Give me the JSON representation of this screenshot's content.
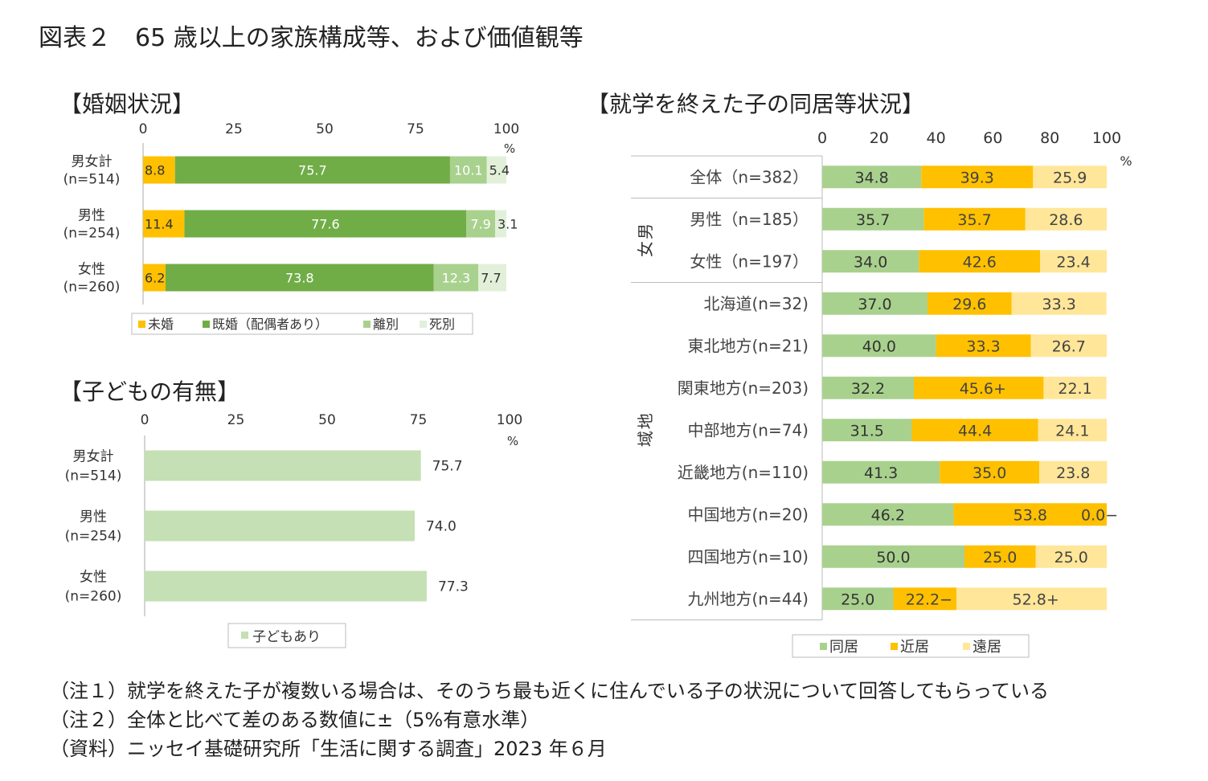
{
  "title": "図表２　65 歳以上の家族構成等、および価値観等",
  "colors": {
    "unmarried": "#ffc000",
    "married": "#70ad47",
    "divorced": "#a9d18e",
    "widowed": "#e2f0d9",
    "children": "#c5e0b4",
    "together": "#a9d18e",
    "near": "#ffc000",
    "far": "#ffe699"
  },
  "chart_data": [
    {
      "type": "bar",
      "title": "【婚姻状況】",
      "stacked": true,
      "orientation": "horizontal",
      "xlim": [
        0,
        100
      ],
      "xticks": [
        "0",
        "25",
        "50",
        "75",
        "100"
      ],
      "unit": "%",
      "categories": [
        [
          "男女計",
          "(n=514)"
        ],
        [
          "男性",
          "(n=254)"
        ],
        [
          "女性",
          "(n=260)"
        ]
      ],
      "series": [
        {
          "name": "未婚",
          "values": [
            8.8,
            11.4,
            6.2
          ],
          "labels": [
            "8.8",
            "11.4",
            "6.2"
          ]
        },
        {
          "name": "既婚（配偶者あり）",
          "values": [
            75.7,
            77.6,
            73.8
          ],
          "labels": [
            "75.7",
            "77.6",
            "73.8"
          ]
        },
        {
          "name": "離別",
          "values": [
            10.1,
            7.9,
            12.3
          ],
          "labels": [
            "10.1",
            "7.9",
            "12.3"
          ]
        },
        {
          "name": "死別",
          "values": [
            5.4,
            3.1,
            7.7
          ],
          "labels": [
            "5.4",
            "3.1",
            "7.7"
          ]
        }
      ],
      "legend": "bottom"
    },
    {
      "type": "bar",
      "title": "【子どもの有無】",
      "orientation": "horizontal",
      "xlim": [
        0,
        100
      ],
      "xticks": [
        "0",
        "25",
        "50",
        "75",
        "100"
      ],
      "unit": "%",
      "categories": [
        [
          "男女計",
          "(n=514)"
        ],
        [
          "男性",
          "(n=254)"
        ],
        [
          "女性",
          "(n=260)"
        ]
      ],
      "series": [
        {
          "name": "子どもあり",
          "values": [
            75.7,
            74.0,
            77.3
          ],
          "labels": [
            "75.7",
            "74.0",
            "77.3"
          ]
        }
      ],
      "legend": "bottom"
    },
    {
      "type": "bar",
      "title": "【就学を終えた子の同居等状況】",
      "stacked": true,
      "orientation": "horizontal",
      "xlim": [
        0,
        100
      ],
      "xticks": [
        "0",
        "20",
        "40",
        "60",
        "80",
        "100"
      ],
      "unit": "%",
      "groups": [
        {
          "name": "男女",
          "rows": [
            1,
            2
          ]
        },
        {
          "name": "地域",
          "rows": [
            3,
            4,
            5,
            6,
            7,
            8,
            9
          ]
        }
      ],
      "categories": [
        "全体（n=382）",
        "男性（n=185）",
        "女性（n=197）",
        "北海道(n=32)",
        "東北地方(n=21)",
        "関東地方(n=203)",
        "中部地方(n=74)",
        "近畿地方(n=110)",
        "中国地方(n=20)",
        "四国地方(n=10)",
        "九州地方(n=44)"
      ],
      "series": [
        {
          "name": "同居",
          "values": [
            34.8,
            35.7,
            34.0,
            37.0,
            40.0,
            32.2,
            31.5,
            41.3,
            46.2,
            50.0,
            25.0
          ],
          "labels": [
            "34.8",
            "35.7",
            "34.0",
            "37.0",
            "40.0",
            "32.2",
            "31.5",
            "41.3",
            "46.2",
            "50.0",
            "25.0"
          ]
        },
        {
          "name": "近居",
          "values": [
            39.3,
            35.7,
            42.6,
            29.6,
            33.3,
            45.6,
            44.4,
            35.0,
            53.8,
            25.0,
            22.2
          ],
          "labels": [
            "39.3",
            "35.7",
            "42.6",
            "29.6",
            "33.3",
            "45.6+",
            "44.4",
            "35.0",
            "53.8",
            "25.0",
            "22.2−"
          ]
        },
        {
          "name": "遠居",
          "values": [
            25.9,
            28.6,
            23.4,
            33.3,
            26.7,
            22.1,
            24.1,
            23.8,
            0.0,
            25.0,
            52.8
          ],
          "labels": [
            "25.9",
            "28.6",
            "23.4",
            "33.3",
            "26.7",
            "22.1",
            "24.1",
            "23.8",
            "0.0−",
            "25.0",
            "52.8+"
          ]
        }
      ],
      "legend": "bottom"
    }
  ],
  "notes": [
    "（注１）就学を終えた子が複数いる場合は、そのうち最も近くに住んでいる子の状況について回答してもらっている",
    "（注２）全体と比べて差のある数値に±（5%有意水準）",
    "（資料）ニッセイ基礎研究所「生活に関する調査」2023 年６月"
  ]
}
